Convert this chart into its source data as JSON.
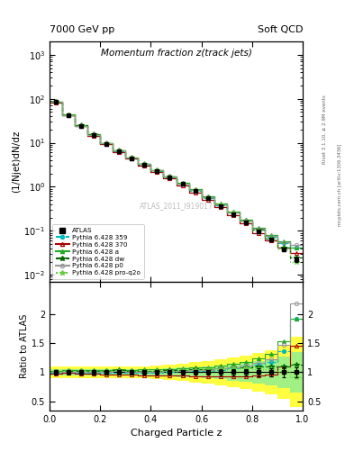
{
  "title_top_left": "7000 GeV pp",
  "title_top_right": "Soft QCD",
  "plot_title": "Momentum fraction z(track jets)",
  "xlabel": "Charged Particle z",
  "ylabel_main": "(1/Njet)dN/dz",
  "ylabel_ratio": "Ratio to ATLAS",
  "right_label_top": "Rivet 3.1.10, ≥ 2.9M events",
  "right_label_bottom": "mcplots.cern.ch [arXiv:1306.3436]",
  "watermark": "ATLAS_2011_I919017",
  "z_values": [
    0.025,
    0.075,
    0.125,
    0.175,
    0.225,
    0.275,
    0.325,
    0.375,
    0.425,
    0.475,
    0.525,
    0.575,
    0.625,
    0.675,
    0.725,
    0.775,
    0.825,
    0.875,
    0.925,
    0.975
  ],
  "atlas_y": [
    85.0,
    42.0,
    24.0,
    15.0,
    9.5,
    6.5,
    4.5,
    3.2,
    2.3,
    1.65,
    1.15,
    0.8,
    0.55,
    0.37,
    0.24,
    0.155,
    0.095,
    0.062,
    0.038,
    0.022
  ],
  "atlas_yerr": [
    3.5,
    1.8,
    1.0,
    0.65,
    0.42,
    0.28,
    0.19,
    0.13,
    0.09,
    0.07,
    0.05,
    0.035,
    0.025,
    0.018,
    0.013,
    0.009,
    0.006,
    0.004,
    0.003,
    0.002
  ],
  "py359_y": [
    84.5,
    41.8,
    23.9,
    14.9,
    9.45,
    6.45,
    4.45,
    3.18,
    2.29,
    1.67,
    1.17,
    0.82,
    0.565,
    0.385,
    0.255,
    0.168,
    0.107,
    0.073,
    0.052,
    0.042
  ],
  "py370_y": [
    83.5,
    41.5,
    23.5,
    14.6,
    9.2,
    6.25,
    4.3,
    3.05,
    2.18,
    1.55,
    1.08,
    0.75,
    0.51,
    0.345,
    0.225,
    0.145,
    0.09,
    0.06,
    0.042,
    0.032
  ],
  "pya_y": [
    87.0,
    43.5,
    25.0,
    15.6,
    9.9,
    6.8,
    4.7,
    3.35,
    2.42,
    1.75,
    1.23,
    0.87,
    0.6,
    0.41,
    0.275,
    0.182,
    0.118,
    0.082,
    0.058,
    0.042
  ],
  "pydw_y": [
    86.0,
    43.0,
    24.6,
    15.4,
    9.75,
    6.7,
    4.62,
    3.28,
    2.36,
    1.7,
    1.2,
    0.84,
    0.58,
    0.395,
    0.26,
    0.168,
    0.105,
    0.068,
    0.042,
    0.025
  ],
  "pyp0_y": [
    85.5,
    42.5,
    24.3,
    15.2,
    9.6,
    6.6,
    4.56,
    3.24,
    2.33,
    1.68,
    1.18,
    0.83,
    0.575,
    0.395,
    0.262,
    0.172,
    0.11,
    0.076,
    0.056,
    0.048
  ],
  "pyq2o_y": [
    85.8,
    42.8,
    24.5,
    15.3,
    9.65,
    6.62,
    4.58,
    3.26,
    2.35,
    1.69,
    1.19,
    0.835,
    0.576,
    0.392,
    0.258,
    0.165,
    0.1,
    0.065,
    0.038,
    0.02
  ],
  "atlas_band_frac_inner": [
    0.05,
    0.05,
    0.05,
    0.05,
    0.05,
    0.05,
    0.05,
    0.05,
    0.06,
    0.07,
    0.08,
    0.09,
    0.1,
    0.12,
    0.14,
    0.16,
    0.19,
    0.22,
    0.27,
    0.35
  ],
  "atlas_band_frac_outer": [
    0.1,
    0.1,
    0.1,
    0.1,
    0.1,
    0.1,
    0.1,
    0.1,
    0.12,
    0.13,
    0.15,
    0.17,
    0.19,
    0.22,
    0.25,
    0.28,
    0.33,
    0.38,
    0.46,
    0.6
  ],
  "color_atlas": "#000000",
  "color_py359": "#00BBBB",
  "color_py370": "#AA0000",
  "color_pya": "#22AA22",
  "color_pydw": "#006600",
  "color_pyp0": "#999999",
  "color_pyq2o": "#66CC44",
  "ylim_main": [
    0.007,
    2000
  ],
  "ylim_ratio": [
    0.35,
    2.55
  ],
  "xlim": [
    0.0,
    1.0
  ],
  "yticks_ratio": [
    0.5,
    1.0,
    1.5,
    2.0
  ],
  "ytick_labels_ratio": [
    "0.5",
    "1",
    "1.5",
    "2"
  ]
}
